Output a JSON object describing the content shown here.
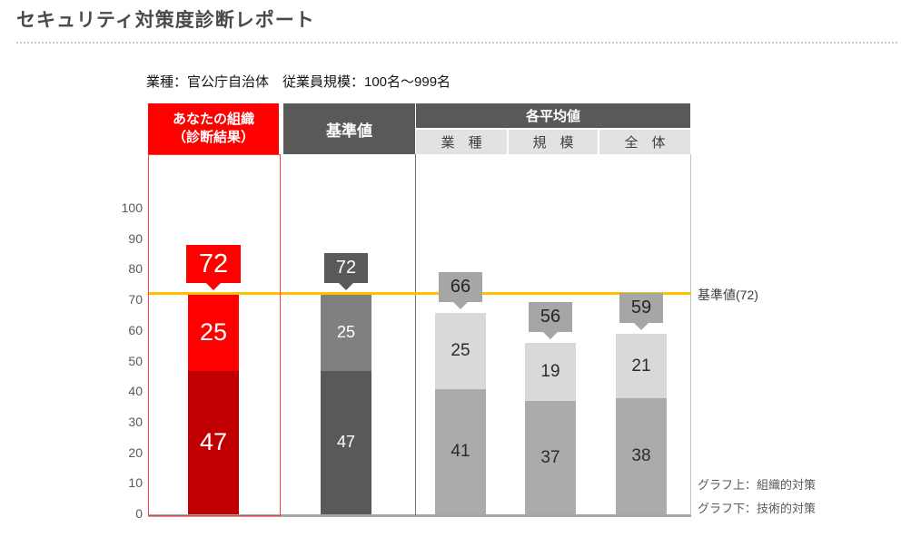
{
  "page": {
    "title": "セキュリティ対策度診断レポート",
    "subtitle": "業種：官公庁自治体　従業員規模：100名～999名"
  },
  "headers": {
    "your_org_line1": "あなたの組織",
    "your_org_line2": "（診断結果）",
    "baseline": "基準値",
    "averages_group": "各平均値",
    "avg_industry": "業　種",
    "avg_scale": "規　模",
    "avg_overall": "全　体"
  },
  "chart_data": {
    "type": "stacked-bar",
    "title": "セキュリティ対策度診断レポート",
    "ylim": [
      0,
      100
    ],
    "yticks": [
      0,
      10,
      20,
      30,
      40,
      50,
      60,
      70,
      80,
      90,
      100
    ],
    "categories": [
      "あなたの組織（診断結果）",
      "基準値",
      "業種",
      "規模",
      "全体"
    ],
    "series": [
      {
        "name": "組織的対策（グラフ上）",
        "values": [
          25,
          25,
          25,
          19,
          21
        ]
      },
      {
        "name": "技術的対策（グラフ下）",
        "values": [
          47,
          47,
          41,
          37,
          38
        ]
      }
    ],
    "totals": [
      72,
      72,
      66,
      56,
      59
    ],
    "baseline_value": 72,
    "baseline_label": "基準値(72)",
    "legend_position": "right",
    "grid": false,
    "bar_styles": [
      {
        "upper": "#ff0000",
        "lower": "#c00000",
        "label_color": "#ffffff",
        "badge_bg": "#ff0000",
        "badge_text": "#ffffff"
      },
      {
        "upper": "#808080",
        "lower": "#595959",
        "label_color": "#ffffff",
        "badge_bg": "#595959",
        "badge_text": "#ffffff"
      },
      {
        "upper": "#d9d9d9",
        "lower": "#ababab",
        "label_color": "#2b2b2b",
        "badge_bg": "#a6a6a6",
        "badge_text": "#262626"
      },
      {
        "upper": "#d9d9d9",
        "lower": "#ababab",
        "label_color": "#2b2b2b",
        "badge_bg": "#a6a6a6",
        "badge_text": "#262626"
      },
      {
        "upper": "#d9d9d9",
        "lower": "#ababab",
        "label_color": "#2b2b2b",
        "badge_bg": "#a6a6a6",
        "badge_text": "#262626"
      }
    ]
  },
  "palette": {
    "red": "#ff0000",
    "dark_red": "#c00000",
    "dark_gray": "#595959",
    "mid_gray": "#808080",
    "light_gray": "#d9d9d9",
    "badge_gray": "#a6a6a6",
    "subheader_bg": "#e2e2e2",
    "yellow": "#ffc000",
    "axis_gray": "#a6a6a6"
  },
  "notes": {
    "upper": "グラフ上：組織的対策",
    "lower": "グラフ下：技術的対策"
  }
}
